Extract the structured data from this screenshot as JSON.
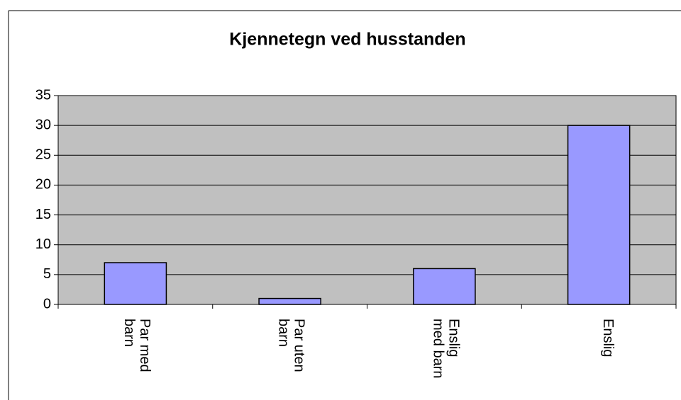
{
  "chart_data": {
    "type": "bar",
    "title": "Kjennetegn ved husstanden",
    "categories": [
      "Par med barn",
      "Par uten barn",
      "Enslig med barn",
      "Enslig"
    ],
    "values": [
      7,
      1,
      6,
      30
    ],
    "color": "#9999ff",
    "ylim": [
      0,
      35
    ],
    "yticks": [
      0,
      5,
      10,
      15,
      20,
      25,
      30,
      35
    ],
    "grid": true
  }
}
